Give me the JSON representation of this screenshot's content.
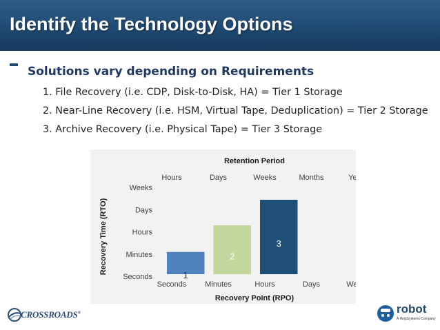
{
  "slide": {
    "title": "Identify the Technology Options",
    "heading": "Solutions vary depending on Requirements",
    "items": [
      "1. File Recovery (i.e. CDP, Disk-to-Disk, HA) = Tier 1 Storage",
      "2. Near-Line Recovery (i.e. HSM, Virtual Tape, Deduplication) = Tier 2 Storage",
      "3. Archive Recovery (i.e. Physical Tape) = Tier 3 Storage"
    ]
  },
  "chart_data": {
    "type": "bar",
    "title": "Retention Period",
    "xlabel": "Recovery Point (RPO)",
    "ylabel": "Recovery Time (RTO)",
    "x_ticks_bottom": [
      "Seconds",
      "Minutes",
      "Hours",
      "Days",
      "Weeks"
    ],
    "x_ticks_top": [
      "Hours",
      "Days",
      "Weeks",
      "Months",
      "Years"
    ],
    "y_ticks": [
      "Seconds",
      "Minutes",
      "Hours",
      "Days",
      "Weeks"
    ],
    "ylim": [
      0,
      4
    ],
    "grid": false,
    "bars": [
      {
        "label": "1",
        "x_from": "Seconds",
        "x_to": "Minutes",
        "value": 1.0,
        "color": "#4f81bd",
        "label_color": "#1f3864"
      },
      {
        "label": "2",
        "x_from": "Minutes",
        "x_to": "Hours",
        "value": 2.2,
        "color": "#c3d69b",
        "label_color": "#ffffff"
      },
      {
        "label": "3",
        "x_from": "Hours",
        "x_to": "Days",
        "value": 3.35,
        "color": "#1f4e79",
        "label_color": "#ffffff"
      }
    ]
  },
  "footer": {
    "left_logo": "CROSSROADS",
    "left_logo_mark": "®",
    "right_logo": "robot",
    "right_logo_sub": "A HelpSystems Company"
  },
  "colors": {
    "title_bar": "#1f4a73",
    "heading": "#1f3864",
    "chart_background": "#f2f2f2"
  }
}
